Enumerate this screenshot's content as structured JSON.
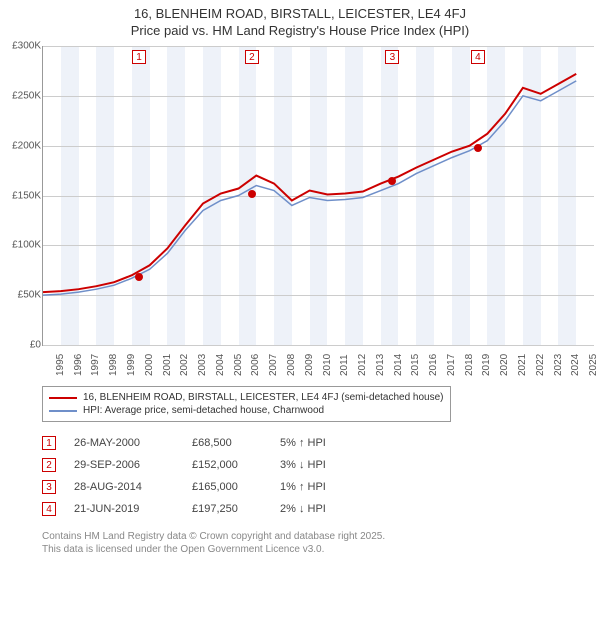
{
  "title_line1": "16, BLENHEIM ROAD, BIRSTALL, LEICESTER, LE4 4FJ",
  "title_line2": "Price paid vs. HM Land Registry's House Price Index (HPI)",
  "chart": {
    "type": "line",
    "x_years": [
      1995,
      1996,
      1997,
      1998,
      1999,
      2000,
      2001,
      2002,
      2003,
      2004,
      2005,
      2006,
      2007,
      2008,
      2009,
      2010,
      2011,
      2012,
      2013,
      2014,
      2015,
      2016,
      2017,
      2018,
      2019,
      2020,
      2021,
      2022,
      2023,
      2024,
      2025
    ],
    "x_min": 1995,
    "x_max": 2026,
    "y_min": 0,
    "y_max": 300000,
    "y_tick_step": 50000,
    "y_tick_labels": [
      "£0",
      "£50K",
      "£100K",
      "£150K",
      "£200K",
      "£250K",
      "£300K"
    ],
    "banded_background": true,
    "band_color": "#eef2f9",
    "grid_color": "#cccccc",
    "axis_color": "#999999",
    "background_color": "#ffffff",
    "label_fontsize": 10,
    "series": [
      {
        "name": "HPI: Average price, semi-detached house, Charnwood",
        "color": "#6f8fc9",
        "line_width": 1.5,
        "x": [
          1995,
          1996,
          1997,
          1998,
          1999,
          2000,
          2001,
          2002,
          2003,
          2004,
          2005,
          2006,
          2007,
          2008,
          2009,
          2010,
          2011,
          2012,
          2013,
          2014,
          2015,
          2016,
          2017,
          2018,
          2019,
          2020,
          2021,
          2022,
          2023,
          2024,
          2025
        ],
        "y": [
          50000,
          51000,
          53000,
          56000,
          60000,
          67000,
          76000,
          92000,
          115000,
          135000,
          145000,
          150000,
          160000,
          155000,
          140000,
          148000,
          145000,
          146000,
          148000,
          155000,
          162000,
          172000,
          180000,
          188000,
          195000,
          205000,
          225000,
          250000,
          245000,
          255000,
          265000
        ]
      },
      {
        "name": "16, BLENHEIM ROAD, BIRSTALL, LEICESTER, LE4 4FJ (semi-detached house)",
        "color": "#cc0000",
        "line_width": 2,
        "x": [
          1995,
          1996,
          1997,
          1998,
          1999,
          2000,
          2001,
          2002,
          2003,
          2004,
          2005,
          2006,
          2007,
          2008,
          2009,
          2010,
          2011,
          2012,
          2013,
          2014,
          2015,
          2016,
          2017,
          2018,
          2019,
          2020,
          2021,
          2022,
          2023,
          2024,
          2025
        ],
        "y": [
          53000,
          54000,
          56000,
          59000,
          63000,
          70000,
          80000,
          97000,
          120000,
          142000,
          152000,
          157000,
          170000,
          162000,
          145000,
          155000,
          151000,
          152000,
          154000,
          162000,
          169000,
          178000,
          186000,
          194000,
          200000,
          212000,
          232000,
          258000,
          252000,
          262000,
          272000
        ]
      }
    ],
    "markers": [
      {
        "id": "1",
        "year": 2000.4,
        "value": 68500
      },
      {
        "id": "2",
        "year": 2006.75,
        "value": 152000
      },
      {
        "id": "3",
        "year": 2014.66,
        "value": 165000
      },
      {
        "id": "4",
        "year": 2019.47,
        "value": 197250
      }
    ],
    "marker_box_color": "#cc0000",
    "marker_dot_color": "#cc0000"
  },
  "legend": {
    "items": [
      {
        "color": "#cc0000",
        "label": "16, BLENHEIM ROAD, BIRSTALL, LEICESTER, LE4 4FJ (semi-detached house)"
      },
      {
        "color": "#6f8fc9",
        "label": "HPI: Average price, semi-detached house, Charnwood"
      }
    ]
  },
  "events": [
    {
      "id": "1",
      "date": "26-MAY-2000",
      "price": "£68,500",
      "delta": "5% ↑ HPI"
    },
    {
      "id": "2",
      "date": "29-SEP-2006",
      "price": "£152,000",
      "delta": "3% ↓ HPI"
    },
    {
      "id": "3",
      "date": "28-AUG-2014",
      "price": "£165,000",
      "delta": "1% ↑ HPI"
    },
    {
      "id": "4",
      "date": "21-JUN-2019",
      "price": "£197,250",
      "delta": "2% ↓ HPI"
    }
  ],
  "footer_line1": "Contains HM Land Registry data © Crown copyright and database right 2025.",
  "footer_line2": "This data is licensed under the Open Government Licence v3.0."
}
